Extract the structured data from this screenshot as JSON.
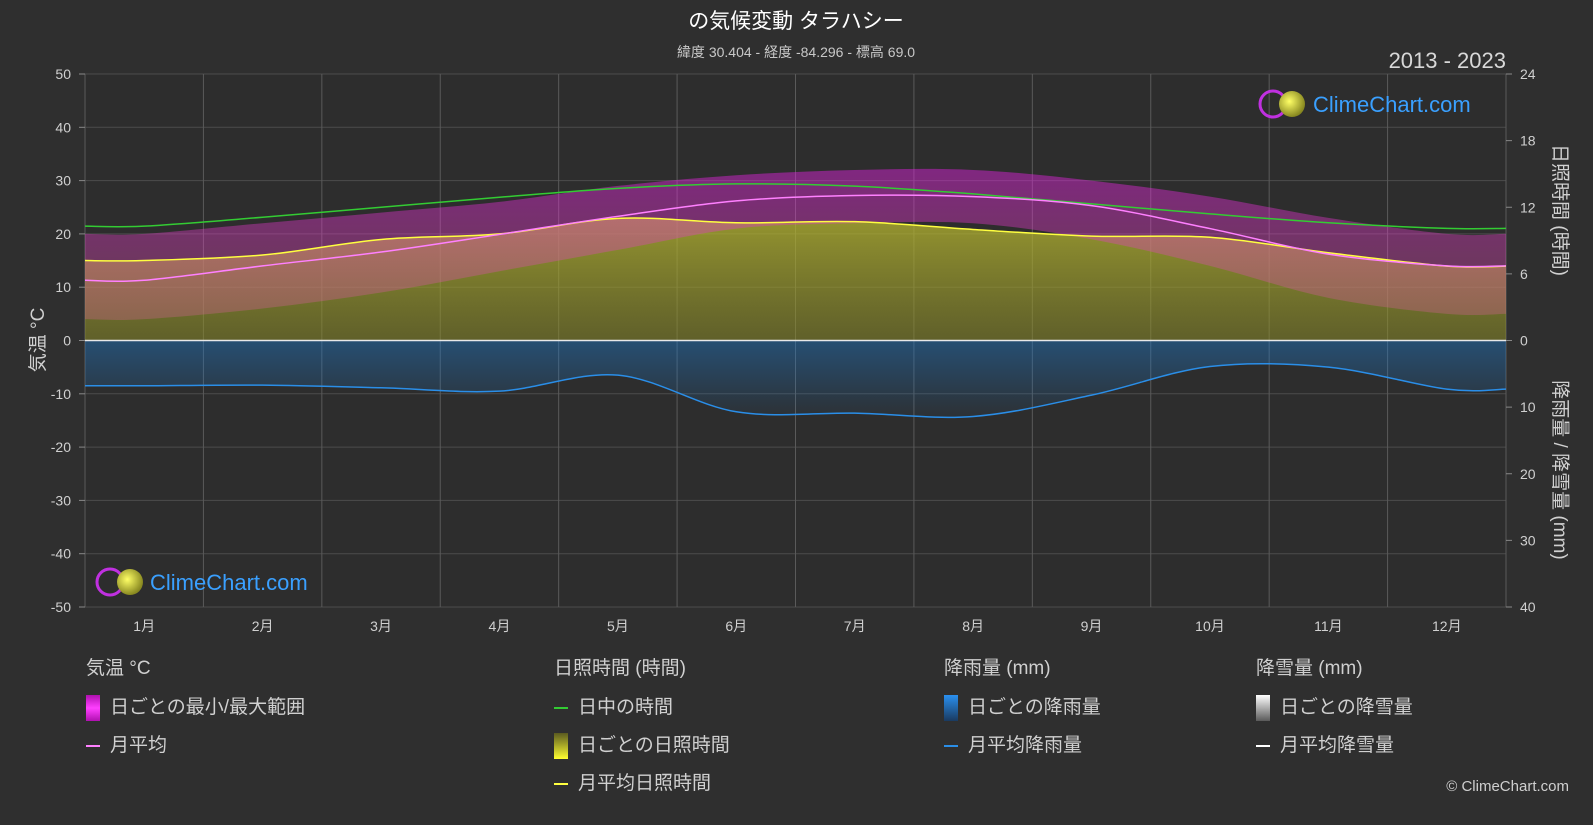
{
  "header": {
    "title": "の気候変動 タラハシー",
    "subtitle": "緯度 30.404 - 経度 -84.296 - 標高 69.0",
    "period": "2013 - 2023"
  },
  "brand": {
    "name": "ClimeChart.com",
    "copyright": "© ClimeChart.com"
  },
  "colors": {
    "temp_range": "#e020e0",
    "temp_mean": "#ff80ff",
    "daylight": "#33cc33",
    "sunshine_daily": "#c8c832",
    "sunshine_mean": "#ffff40",
    "rain_daily": "#1e78c8",
    "rain_mean": "#2a8ee8",
    "snow_mean": "#ffffff",
    "brand": "#3aa0ff"
  },
  "chart_data": {
    "type": "line",
    "categories": [
      "1月",
      "2月",
      "3月",
      "4月",
      "5月",
      "6月",
      "7月",
      "8月",
      "9月",
      "10月",
      "11月",
      "12月"
    ],
    "left_axis": {
      "label": "気温 °C",
      "range": [
        -50,
        50
      ],
      "ticks": [
        50,
        40,
        30,
        20,
        10,
        0,
        -10,
        -20,
        -30,
        -40,
        -50
      ]
    },
    "right_axis_top": {
      "label": "日照時間 (時間)",
      "range": [
        0,
        24
      ],
      "ticks": [
        24,
        18,
        12,
        6,
        0
      ]
    },
    "right_axis_bottom": {
      "label": "降雨量 / 降雪量 (mm)",
      "range": [
        0,
        40
      ],
      "ticks": [
        10,
        20,
        30,
        40
      ]
    },
    "grid": true,
    "series": [
      {
        "name": "日中の時間",
        "axis": "sunshine_hours",
        "values": [
          10.3,
          11.1,
          12.0,
          12.9,
          13.7,
          14.1,
          13.9,
          13.2,
          12.3,
          11.4,
          10.6,
          10.1
        ]
      },
      {
        "name": "月平均日照時間",
        "axis": "sunshine_hours",
        "values": [
          7.2,
          7.7,
          9.1,
          9.6,
          11.0,
          10.6,
          10.7,
          10.0,
          9.4,
          9.3,
          7.9,
          6.7
        ]
      },
      {
        "name": "月平均",
        "axis": "temperature_c",
        "values": [
          11.3,
          14.0,
          16.6,
          19.9,
          23.3,
          26.2,
          27.2,
          27.0,
          25.3,
          21.0,
          16.2,
          14.0
        ]
      },
      {
        "name": "月平均降雨量",
        "axis": "precip_mm",
        "values": [
          6.8,
          6.7,
          7.1,
          7.6,
          5.2,
          10.7,
          10.9,
          11.4,
          8.2,
          3.9,
          4.0,
          7.3
        ]
      }
    ],
    "temp_range_bands": {
      "name": "日ごとの最小/最大範囲",
      "max": [
        20,
        22,
        24,
        26,
        29,
        31,
        32,
        32,
        30,
        27,
        23,
        20
      ],
      "min": [
        4,
        6,
        9,
        13,
        17,
        21,
        22,
        22,
        19,
        14,
        8,
        5
      ]
    },
    "monthly_mean_snow": [
      0,
      0,
      0,
      0,
      0,
      0,
      0,
      0,
      0,
      0,
      0,
      0
    ]
  },
  "legend": {
    "temperature": {
      "heading": "気温 °C",
      "range": "日ごとの最小/最大範囲",
      "mean": "月平均"
    },
    "sunshine": {
      "heading": "日照時間 (時間)",
      "daylight": "日中の時間",
      "daily": "日ごとの日照時間",
      "mean": "月平均日照時間"
    },
    "rain": {
      "heading": "降雨量 (mm)",
      "daily": "日ごとの降雨量",
      "mean": "月平均降雨量"
    },
    "snow": {
      "heading": "降雪量 (mm)",
      "daily": "日ごとの降雪量",
      "mean": "月平均降雪量"
    }
  }
}
